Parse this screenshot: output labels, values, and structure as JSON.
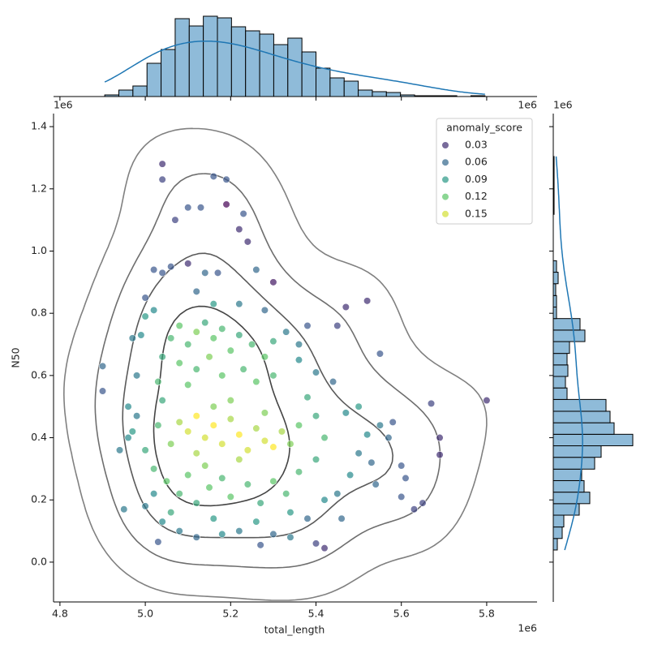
{
  "chart_data": {
    "type": "scatter",
    "xlabel": "total_length",
    "ylabel": "N50",
    "x_offset": "1e6",
    "y_offset": "1e6",
    "legend_title": "anomaly_score",
    "legend": [
      0.03,
      0.06,
      0.09,
      0.12,
      0.15
    ],
    "legend_corner": "upper right",
    "colormap": "viridis",
    "xlim": [
      4.785,
      5.918
    ],
    "xticks": [
      4.8,
      {
        "value": 5,
        "label": "5.0"
      },
      5.2,
      5.4,
      5.6,
      5.8
    ],
    "ylim": [
      -0.128,
      1.442
    ],
    "yticks": [
      {
        "value": 0,
        "label": "0.0"
      },
      0.2,
      0.4,
      0.6,
      0.8,
      {
        "value": 1,
        "label": "1.0"
      },
      1.2,
      1.4
    ],
    "x": [
      5.8,
      5.69,
      5.69,
      5.67,
      5.65,
      5.63,
      5.61,
      5.6,
      5.58,
      5.55,
      5.52,
      5.47,
      5.45,
      5.42,
      5.4,
      5.38,
      5.04,
      5.04,
      5.16,
      5.19,
      5.1,
      5.13,
      5.19,
      5.22,
      5.07,
      5.23,
      5.24,
      4.9,
      4.9,
      4.94,
      4.95,
      5.03,
      5.27,
      5.1,
      5.06,
      5.14,
      5.12,
      5.17,
      5.26,
      5.3,
      5.04,
      5.02,
      5.0,
      4.96,
      4.97,
      4.98,
      4.96,
      4.98,
      4.99,
      5.0,
      4.97,
      5.02,
      5.0,
      5.02,
      5.04,
      5.08,
      5.12,
      5.18,
      5.22,
      5.3,
      5.34,
      5.38,
      5.42,
      5.45,
      5.48,
      5.5,
      5.52,
      5.55,
      5.57,
      5.53,
      5.5,
      5.47,
      5.44,
      5.4,
      5.36,
      5.33,
      5.28,
      5.22,
      5.16,
      5.36,
      5.6,
      5.54,
      5.46,
      5.06,
      5.08,
      5.1,
      5.12,
      5.14,
      5.16,
      5.18,
      5.2,
      5.22,
      5.25,
      5.28,
      5.3,
      5.04,
      5.08,
      5.12,
      5.15,
      5.18,
      5.23,
      5.26,
      5.3,
      5.03,
      5.1,
      5.08,
      5.1,
      5.12,
      5.14,
      5.16,
      5.18,
      5.2,
      5.22,
      5.24,
      5.26,
      5.28,
      5.3,
      5.32,
      5.34,
      5.12,
      5.16,
      5.06,
      5.2,
      5.28,
      5.36,
      5.14,
      5.22,
      5.02,
      5.05,
      5.08,
      5.1,
      5.12,
      5.15,
      5.18,
      5.2,
      5.24,
      5.27,
      5.3,
      5.33,
      5.36,
      5.4,
      5.42,
      5.4,
      5.38,
      5.06,
      5.16,
      5.26,
      5.34,
      5.0,
      5.03,
      5.04
    ],
    "values": [
      0.52,
      0.4,
      0.345,
      0.51,
      0.19,
      0.17,
      0.27,
      0.21,
      0.45,
      0.67,
      0.84,
      0.82,
      0.76,
      0.045,
      0.06,
      0.76,
      1.28,
      1.23,
      1.24,
      1.23,
      1.14,
      1.14,
      1.15,
      1.07,
      1.1,
      1.12,
      1.03,
      0.63,
      0.55,
      0.36,
      0.17,
      0.065,
      0.055,
      0.96,
      0.95,
      0.93,
      0.87,
      0.93,
      0.94,
      0.9,
      0.93,
      0.94,
      0.85,
      0.5,
      0.42,
      0.47,
      0.4,
      0.6,
      0.73,
      0.79,
      0.72,
      0.81,
      0.18,
      0.22,
      0.13,
      0.1,
      0.08,
      0.09,
      0.1,
      0.09,
      0.08,
      0.14,
      0.2,
      0.22,
      0.28,
      0.35,
      0.41,
      0.44,
      0.4,
      0.32,
      0.5,
      0.48,
      0.58,
      0.61,
      0.65,
      0.74,
      0.81,
      0.83,
      0.83,
      0.7,
      0.31,
      0.25,
      0.14,
      0.72,
      0.76,
      0.7,
      0.74,
      0.77,
      0.72,
      0.75,
      0.68,
      0.73,
      0.7,
      0.66,
      0.71,
      0.66,
      0.64,
      0.62,
      0.66,
      0.6,
      0.62,
      0.58,
      0.6,
      0.58,
      0.57,
      0.45,
      0.42,
      0.47,
      0.4,
      0.44,
      0.38,
      0.46,
      0.41,
      0.36,
      0.43,
      0.39,
      0.37,
      0.42,
      0.38,
      0.35,
      0.5,
      0.38,
      0.52,
      0.48,
      0.44,
      0.31,
      0.33,
      0.3,
      0.26,
      0.22,
      0.28,
      0.19,
      0.24,
      0.27,
      0.21,
      0.25,
      0.19,
      0.26,
      0.22,
      0.29,
      0.33,
      0.4,
      0.47,
      0.53,
      0.16,
      0.14,
      0.13,
      0.16,
      0.36,
      0.44,
      0.52
    ],
    "hue": [
      0.03,
      0.03,
      0.03,
      0.04,
      0.04,
      0.04,
      0.05,
      0.05,
      0.05,
      0.05,
      0.03,
      0.03,
      0.04,
      0.03,
      0.04,
      0.05,
      0.03,
      0.04,
      0.05,
      0.05,
      0.05,
      0.05,
      0.01,
      0.03,
      0.04,
      0.05,
      0.03,
      0.06,
      0.05,
      0.07,
      0.07,
      0.05,
      0.05,
      0.03,
      0.05,
      0.06,
      0.06,
      0.05,
      0.06,
      0.02,
      0.05,
      0.05,
      0.05,
      0.08,
      0.09,
      0.07,
      0.08,
      0.07,
      0.08,
      0.09,
      0.07,
      0.08,
      0.07,
      0.08,
      0.08,
      0.07,
      0.06,
      0.08,
      0.07,
      0.06,
      0.07,
      0.06,
      0.08,
      0.07,
      0.08,
      0.07,
      0.08,
      0.07,
      0.06,
      0.06,
      0.09,
      0.08,
      0.06,
      0.07,
      0.08,
      0.07,
      0.06,
      0.07,
      0.09,
      0.07,
      0.05,
      0.06,
      0.06,
      0.11,
      0.12,
      0.11,
      0.13,
      0.1,
      0.12,
      0.11,
      0.12,
      0.1,
      0.11,
      0.12,
      0.1,
      0.1,
      0.12,
      0.11,
      0.13,
      0.12,
      0.11,
      0.12,
      0.11,
      0.11,
      0.12,
      0.14,
      0.15,
      0.16,
      0.15,
      0.16,
      0.15,
      0.14,
      0.16,
      0.15,
      0.14,
      0.15,
      0.16,
      0.14,
      0.13,
      0.14,
      0.13,
      0.13,
      0.13,
      0.13,
      0.12,
      0.13,
      0.14,
      0.11,
      0.12,
      0.11,
      0.12,
      0.1,
      0.12,
      0.11,
      0.12,
      0.11,
      0.1,
      0.12,
      0.11,
      0.11,
      0.1,
      0.11,
      0.1,
      0.1,
      0.1,
      0.09,
      0.09,
      0.09,
      0.1,
      0.11,
      0.1
    ],
    "x_hist": {
      "color": "#8fbbd9",
      "bins": [
        4.905,
        4.938,
        4.971,
        5.004,
        5.037,
        5.07,
        5.103,
        5.136,
        5.169,
        5.202,
        5.235,
        5.268,
        5.301,
        5.334,
        5.367,
        5.4,
        5.433,
        5.466,
        5.499,
        5.532,
        5.565,
        5.598,
        5.631,
        5.664,
        5.697,
        5.73,
        5.763,
        5.796
      ],
      "counts": [
        2,
        8,
        13,
        41,
        58,
        96,
        87,
        99,
        97,
        86,
        81,
        77,
        64,
        72,
        55,
        35,
        23,
        19,
        8,
        6,
        5,
        2,
        1,
        1,
        1,
        0,
        1
      ]
    },
    "y_hist": {
      "color": "#8fbbd9",
      "bins": [
        0.039,
        0.076,
        0.113,
        0.151,
        0.188,
        0.225,
        0.262,
        0.299,
        0.337,
        0.374,
        0.411,
        0.448,
        0.485,
        0.523,
        0.56,
        0.597,
        0.634,
        0.671,
        0.709,
        0.746,
        0.783,
        0.82,
        0.857,
        0.895,
        0.932,
        0.969,
        1.006,
        1.043,
        1.081,
        1.118,
        1.155,
        1.192,
        1.229,
        1.267,
        1.304
      ],
      "counts": [
        5,
        11,
        13,
        32,
        45,
        38,
        35,
        51,
        59,
        98,
        75,
        70,
        65,
        17,
        15,
        18,
        17,
        20,
        39,
        33,
        4,
        4,
        3,
        6,
        4,
        0,
        0,
        0,
        0,
        1,
        1,
        1,
        1,
        1
      ]
    },
    "kde_color": "#1f77b4"
  }
}
